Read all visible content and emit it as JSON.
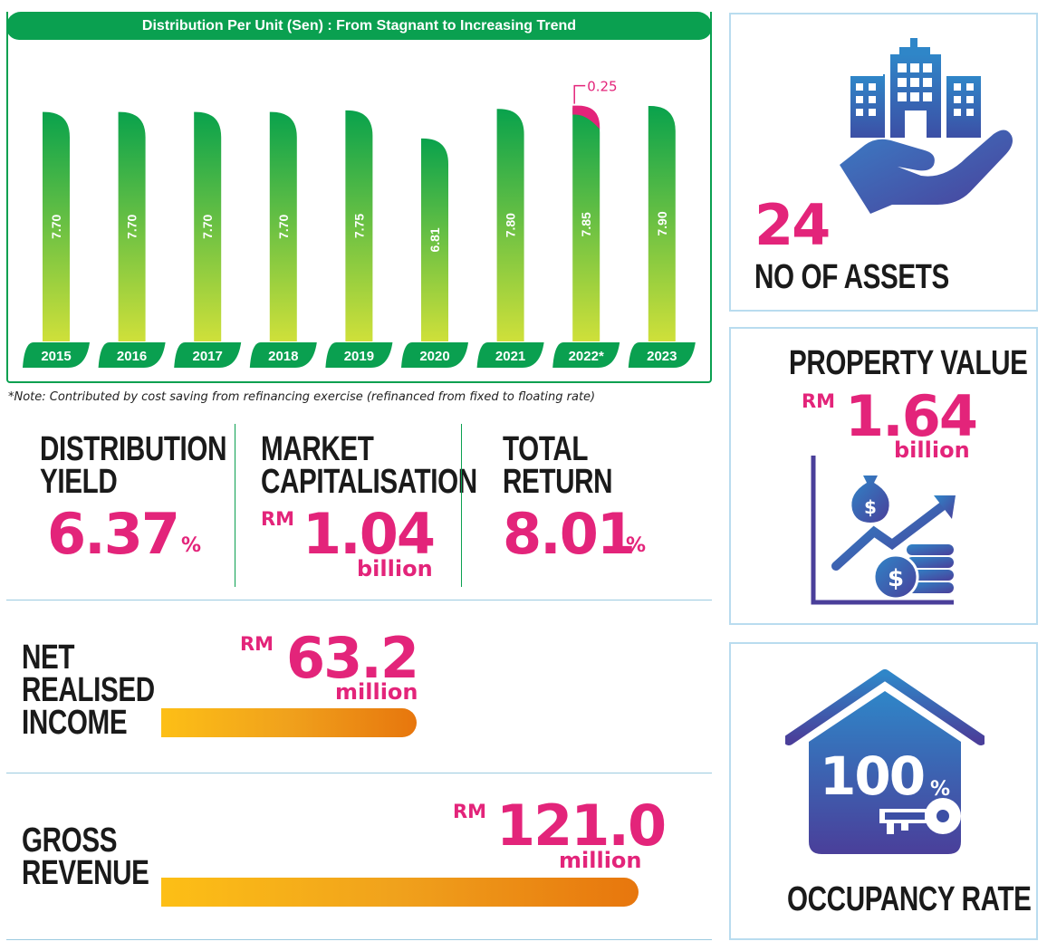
{
  "chart_data": {
    "type": "bar",
    "title": "Distribution Per Unit (Sen) : From Stagnant to Increasing Trend",
    "categories": [
      "2015",
      "2016",
      "2017",
      "2018",
      "2019",
      "2020",
      "2021",
      "2022*",
      "2023"
    ],
    "values": [
      7.7,
      7.7,
      7.7,
      7.7,
      7.75,
      6.81,
      7.8,
      7.85,
      7.9
    ],
    "value_labels": [
      "7.70",
      "7.70",
      "7.70",
      "7.70",
      "7.75",
      "6.81",
      "7.80",
      "7.85",
      "7.90"
    ],
    "annotation": {
      "category": "2022*",
      "label": "0.25",
      "value": 0.25
    },
    "xlabel": "",
    "ylabel": "",
    "colors": {
      "bar_top": "#09a24c",
      "bar_bottom": "#cfe03a",
      "annotation": "#e3247a",
      "year_pill": "#0aa050"
    }
  },
  "note": "*Note: Contributed by cost saving from refinancing exercise (refinanced from fixed to floating rate)",
  "stats": {
    "distribution_yield": {
      "label_line1": "DISTRIBUTION",
      "label_line2": "YIELD",
      "value": "6.37",
      "unit": "%"
    },
    "market_cap": {
      "label_line1": "MARKET",
      "label_line2": "CAPITALISATION",
      "prefix": "RM",
      "value": "1.04",
      "suffix": "billion"
    },
    "total_return": {
      "label_line1": "TOTAL",
      "label_line2": "RETURN",
      "value": "8.01",
      "unit": "%"
    },
    "net_realised_income": {
      "label_line1": "NET",
      "label_line2": "REALISED",
      "label_line3": "INCOME",
      "prefix": "RM",
      "value": "63.2",
      "suffix": "million",
      "amount_million": 63.2
    },
    "gross_revenue": {
      "label_line1": "GROSS",
      "label_line2": "REVENUE",
      "prefix": "RM",
      "value": "121.0",
      "suffix": "million",
      "amount_million": 121.0
    }
  },
  "cards": {
    "assets": {
      "value": "24",
      "label": "NO OF ASSETS",
      "icon": "building-in-hand-icon"
    },
    "property_value": {
      "title": "PROPERTY VALUE",
      "prefix": "RM",
      "value": "1.64",
      "suffix": "billion",
      "icon": "growth-chart-money-icon"
    },
    "occupancy": {
      "value": "100",
      "unit": "%",
      "label": "OCCUPANCY RATE",
      "icon": "house-key-icon"
    }
  },
  "colors": {
    "accent_pink": "#e3247a",
    "green": "#0aa050",
    "blue_icon": "#3c4fa5",
    "card_border": "#b9dcef"
  }
}
